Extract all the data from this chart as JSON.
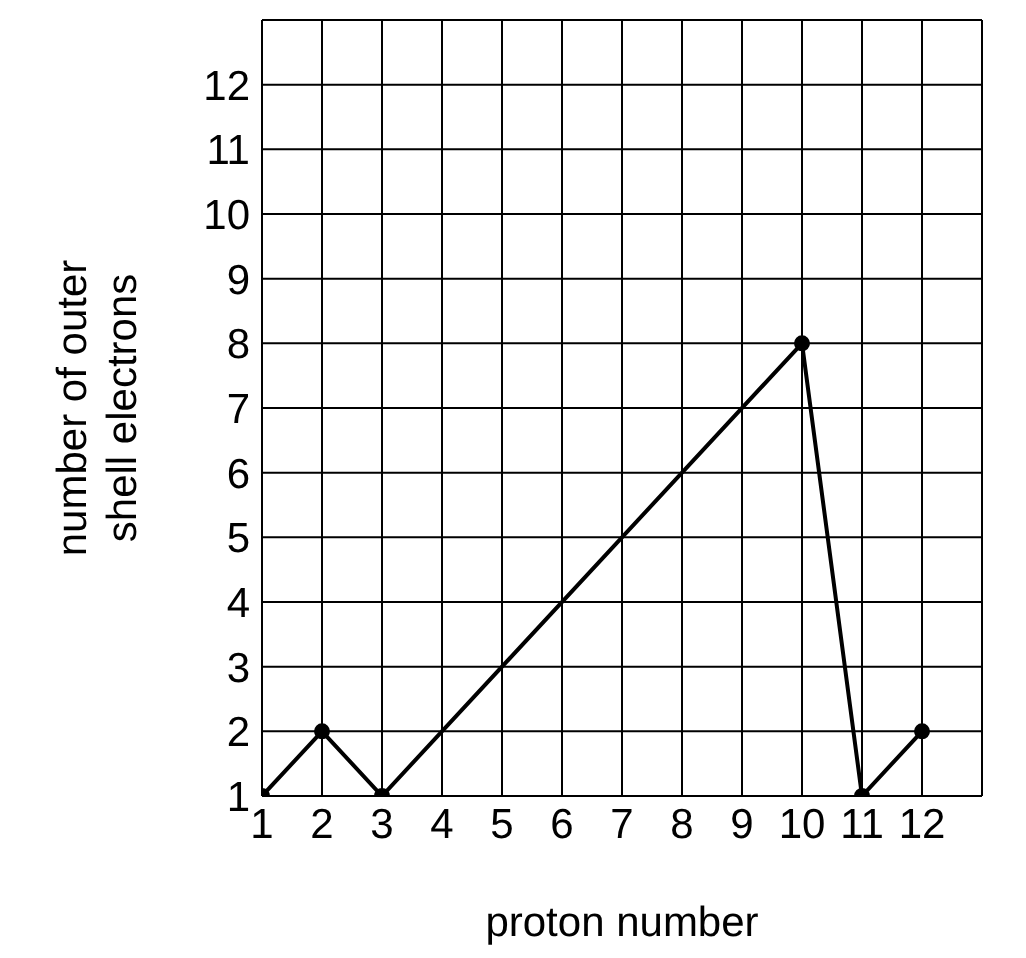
{
  "chart_data": {
    "type": "line",
    "xlabel": "proton number",
    "ylabel": "number of outer shell electrons",
    "x": [
      1,
      2,
      3,
      10,
      11,
      12
    ],
    "series": [
      {
        "color": "#000000",
        "values": [
          1,
          2,
          1,
          8,
          1,
          2
        ]
      }
    ],
    "xlim": [
      1,
      13
    ],
    "ylim": [
      1,
      13
    ],
    "xticks": [
      1,
      2,
      3,
      4,
      5,
      6,
      7,
      8,
      9,
      10,
      11,
      12,
      {
        "value": 13,
        "label": null
      }
    ],
    "yticks": [
      1,
      2,
      3,
      4,
      5,
      6,
      7,
      8,
      9,
      10,
      11,
      12,
      {
        "value": 13,
        "label": null
      }
    ],
    "grid": true,
    "marker": "circle",
    "line_style": "solid"
  }
}
